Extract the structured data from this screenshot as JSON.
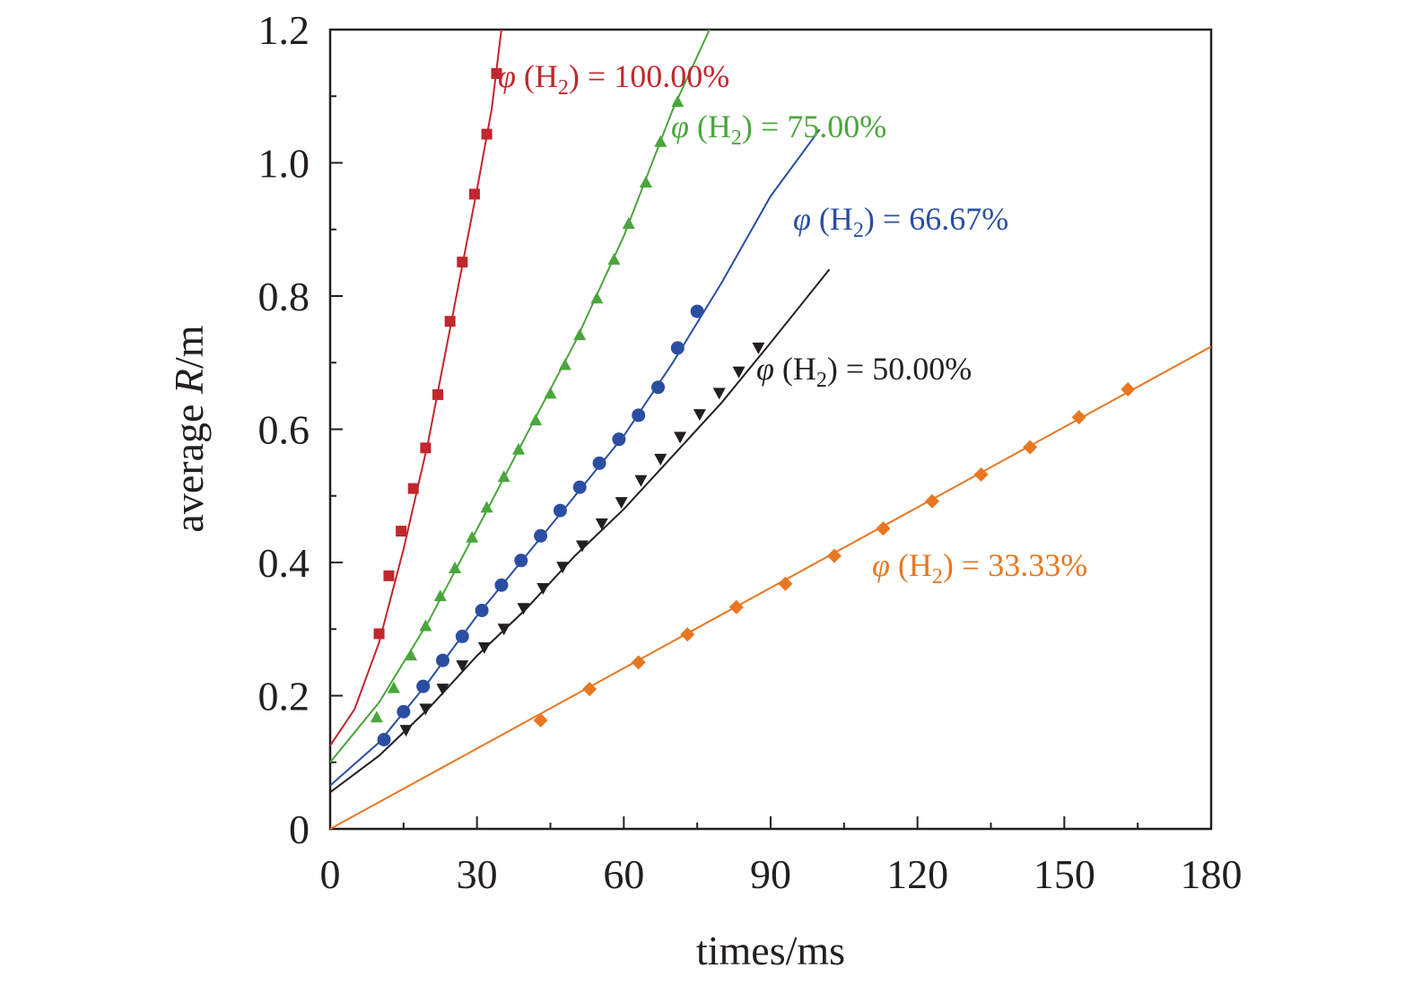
{
  "chart_data": {
    "type": "scatter",
    "title": "",
    "xlabel": "times/ms",
    "ylabel_parts": {
      "prefix": "average ",
      "variable": "R",
      "suffix": "/m"
    },
    "xlim": [
      0,
      180
    ],
    "ylim": [
      0,
      1.2
    ],
    "x_ticks": [
      0,
      30,
      60,
      90,
      120,
      150,
      180
    ],
    "x_tick_labels": [
      "0",
      "30",
      "60",
      "90",
      "120",
      "150",
      "180"
    ],
    "y_ticks": [
      0,
      0.2,
      0.4,
      0.6,
      0.8,
      1.0,
      1.2
    ],
    "y_tick_labels": [
      "0",
      "0.2",
      "0.4",
      "0.6",
      "0.8",
      "1.0",
      "1.2"
    ],
    "grid": false,
    "legend": "inline labels next to each series",
    "series": [
      {
        "label_parts": {
          "symbol": "φ",
          "open": " (H",
          "sub": "2",
          "close": ") = 100.00%"
        },
        "color": "#c1272d",
        "marker": "square",
        "x": [
          10,
          12,
          14.5,
          17,
          19.5,
          22,
          24.5,
          27,
          29.5,
          32,
          34
        ],
        "y": [
          0.293,
          0.38,
          0.447,
          0.511,
          0.572,
          0.652,
          0.762,
          0.851,
          0.953,
          1.043,
          1.134
        ],
        "fit_x": [
          0,
          5,
          10,
          15,
          20,
          25,
          30,
          33,
          35
        ],
        "fit_y": [
          0.125,
          0.18,
          0.28,
          0.42,
          0.58,
          0.77,
          0.96,
          1.08,
          1.2
        ]
      },
      {
        "label_parts": {
          "symbol": "φ",
          "open": " (H",
          "sub": "2",
          "close": ") = 75.00%"
        },
        "color": "#4aa63c",
        "marker": "triangle-up",
        "x": [
          9.5,
          13,
          16.5,
          19.5,
          22.5,
          25.5,
          29,
          32,
          35.5,
          38.5,
          42,
          45,
          48,
          51,
          54.5,
          58,
          61,
          64.5,
          67.5,
          71
        ],
        "y": [
          0.168,
          0.212,
          0.261,
          0.305,
          0.35,
          0.392,
          0.438,
          0.483,
          0.529,
          0.57,
          0.614,
          0.654,
          0.697,
          0.742,
          0.797,
          0.855,
          0.909,
          0.971,
          1.032,
          1.092
        ],
        "fit_x": [
          0,
          10,
          20,
          30,
          40,
          50,
          60,
          70,
          75,
          77.5
        ],
        "fit_y": [
          0.1,
          0.19,
          0.31,
          0.45,
          0.59,
          0.73,
          0.89,
          1.08,
          1.16,
          1.2
        ]
      },
      {
        "label_parts": {
          "symbol": "φ",
          "open": " (H",
          "sub": "2",
          "close": ") = 66.67%"
        },
        "color": "#2b4ea2",
        "marker": "circle",
        "x": [
          11,
          15,
          19,
          23,
          27,
          31,
          35,
          39,
          43,
          47,
          51,
          55,
          59,
          63,
          67,
          71,
          75
        ],
        "y": [
          0.134,
          0.176,
          0.214,
          0.253,
          0.289,
          0.328,
          0.366,
          0.403,
          0.44,
          0.478,
          0.513,
          0.549,
          0.585,
          0.621,
          0.663,
          0.722,
          0.777
        ],
        "fit_x": [
          0,
          10,
          20,
          30,
          40,
          50,
          60,
          70,
          80,
          90,
          100
        ],
        "fit_y": [
          0.065,
          0.13,
          0.22,
          0.32,
          0.41,
          0.5,
          0.59,
          0.7,
          0.82,
          0.95,
          1.05
        ]
      },
      {
        "label_parts": {
          "symbol": "φ",
          "open": " (H",
          "sub": "2",
          "close": ") = 50.00%"
        },
        "color": "#231f20",
        "marker": "triangle-down",
        "x": [
          15.5,
          19.5,
          23,
          27,
          31.5,
          35.5,
          39.5,
          43.5,
          47.5,
          51.5,
          55.5,
          59.5,
          63.5,
          67.5,
          71.5,
          75.5,
          79.5,
          83.5,
          87.5
        ],
        "y": [
          0.148,
          0.18,
          0.21,
          0.245,
          0.272,
          0.3,
          0.331,
          0.361,
          0.393,
          0.425,
          0.458,
          0.49,
          0.523,
          0.555,
          0.588,
          0.622,
          0.654,
          0.686,
          0.722
        ],
        "fit_x": [
          0,
          10,
          20,
          30,
          40,
          50,
          60,
          70,
          80,
          90,
          102
        ],
        "fit_y": [
          0.055,
          0.11,
          0.18,
          0.26,
          0.33,
          0.41,
          0.48,
          0.56,
          0.64,
          0.73,
          0.84
        ]
      },
      {
        "label_parts": {
          "symbol": "φ",
          "open": " (H",
          "sub": "2",
          "close": ") = 33.33%"
        },
        "color": "#e87722",
        "marker": "diamond",
        "x": [
          43,
          53,
          63,
          73,
          83,
          93,
          103,
          113,
          123,
          133,
          143,
          153,
          163
        ],
        "y": [
          0.163,
          0.21,
          0.25,
          0.292,
          0.333,
          0.368,
          0.41,
          0.451,
          0.492,
          0.532,
          0.573,
          0.618,
          0.66
        ],
        "fit_x": [
          0,
          180
        ],
        "fit_y": [
          0.0,
          0.724
        ]
      }
    ]
  }
}
